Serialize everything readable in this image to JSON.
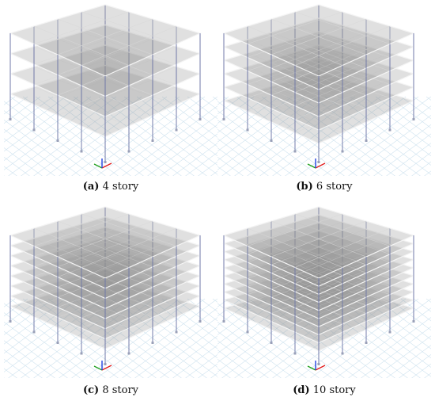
{
  "figure": {
    "panels": [
      {
        "id": "a",
        "label": "(a)",
        "stories": 4,
        "caption": "4 story"
      },
      {
        "id": "b",
        "label": "(b)",
        "stories": 6,
        "caption": "6 story"
      },
      {
        "id": "c",
        "label": "(c)",
        "stories": 8,
        "caption": "8 story"
      },
      {
        "id": "d",
        "label": "(d)",
        "stories": 10,
        "caption": "10 story"
      }
    ],
    "colors": {
      "slab_fill": "#8e8e8e",
      "slab_edge": "#f4f4f4",
      "column": "#6f78a8",
      "ground_grid": "#cfe3ef",
      "axis_x": "#e02020",
      "axis_y": "#20a020",
      "axis_z": "#2040e0",
      "grid_line": "#d8d8d8"
    }
  }
}
